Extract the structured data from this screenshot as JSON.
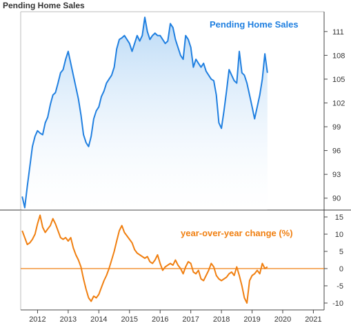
{
  "chart_data": [
    {
      "type": "area",
      "title": "Pending Home Sales",
      "series_label": "Pending Home Sales",
      "x": [
        2011.5,
        2011.583,
        2011.667,
        2011.75,
        2011.833,
        2011.917,
        2012.0,
        2012.083,
        2012.167,
        2012.25,
        2012.333,
        2012.417,
        2012.5,
        2012.583,
        2012.667,
        2012.75,
        2012.833,
        2012.917,
        2013.0,
        2013.083,
        2013.167,
        2013.25,
        2013.333,
        2013.417,
        2013.5,
        2013.583,
        2013.667,
        2013.75,
        2013.833,
        2013.917,
        2014.0,
        2014.083,
        2014.167,
        2014.25,
        2014.333,
        2014.417,
        2014.5,
        2014.583,
        2014.667,
        2014.75,
        2014.833,
        2014.917,
        2015.0,
        2015.083,
        2015.167,
        2015.25,
        2015.333,
        2015.417,
        2015.5,
        2015.583,
        2015.667,
        2015.75,
        2015.833,
        2015.917,
        2016.0,
        2016.083,
        2016.167,
        2016.25,
        2016.333,
        2016.417,
        2016.5,
        2016.583,
        2016.667,
        2016.75,
        2016.833,
        2016.917,
        2017.0,
        2017.083,
        2017.167,
        2017.25,
        2017.333,
        2017.417,
        2017.5,
        2017.583,
        2017.667,
        2017.75,
        2017.833,
        2017.917,
        2018.0,
        2018.083,
        2018.167,
        2018.25,
        2018.333,
        2018.417,
        2018.5,
        2018.583,
        2018.667,
        2018.75,
        2018.833,
        2018.917,
        2019.0,
        2019.083,
        2019.167,
        2019.25,
        2019.333,
        2019.417,
        2019.5
      ],
      "values": [
        90.2,
        88.8,
        91.5,
        94.0,
        96.5,
        97.8,
        98.5,
        98.2,
        98.0,
        99.5,
        100.2,
        101.8,
        103.0,
        103.3,
        104.5,
        105.8,
        106.2,
        107.5,
        108.5,
        107.0,
        105.5,
        104.0,
        102.5,
        100.5,
        98.0,
        97.0,
        96.5,
        97.8,
        100.0,
        101.0,
        101.5,
        102.8,
        103.5,
        104.5,
        105.0,
        105.5,
        106.5,
        108.8,
        110.0,
        110.2,
        110.5,
        110.0,
        109.5,
        108.5,
        109.5,
        110.5,
        109.8,
        110.5,
        112.8,
        111.0,
        110.0,
        110.5,
        110.8,
        110.5,
        110.5,
        110.0,
        109.5,
        109.8,
        112.0,
        111.5,
        110.0,
        109.0,
        108.0,
        107.5,
        110.5,
        110.0,
        109.0,
        106.5,
        107.5,
        107.0,
        106.5,
        107.0,
        106.0,
        105.5,
        105.0,
        104.8,
        103.0,
        99.5,
        98.8,
        101.0,
        103.5,
        106.2,
        105.5,
        104.8,
        104.5,
        108.5,
        105.8,
        105.5,
        104.5,
        103.0,
        101.5,
        100.0,
        101.5,
        103.0,
        105.0,
        108.2,
        105.8
      ],
      "y_ticks": [
        90,
        93,
        96,
        99,
        102,
        105,
        108,
        111
      ],
      "ylim": [
        88.5,
        113.5
      ],
      "line_color": "#1f7fe0",
      "label_color": "#1f7fe0"
    },
    {
      "type": "line",
      "title": "",
      "series_label": "year-over-year change (%)",
      "x": [
        2011.5,
        2011.583,
        2011.667,
        2011.75,
        2011.833,
        2011.917,
        2012.0,
        2012.083,
        2012.167,
        2012.25,
        2012.333,
        2012.417,
        2012.5,
        2012.583,
        2012.667,
        2012.75,
        2012.833,
        2012.917,
        2013.0,
        2013.083,
        2013.167,
        2013.25,
        2013.333,
        2013.417,
        2013.5,
        2013.583,
        2013.667,
        2013.75,
        2013.833,
        2013.917,
        2014.0,
        2014.083,
        2014.167,
        2014.25,
        2014.333,
        2014.417,
        2014.5,
        2014.583,
        2014.667,
        2014.75,
        2014.833,
        2014.917,
        2015.0,
        2015.083,
        2015.167,
        2015.25,
        2015.333,
        2015.417,
        2015.5,
        2015.583,
        2015.667,
        2015.75,
        2015.833,
        2015.917,
        2016.0,
        2016.083,
        2016.167,
        2016.25,
        2016.333,
        2016.417,
        2016.5,
        2016.583,
        2016.667,
        2016.75,
        2016.833,
        2016.917,
        2017.0,
        2017.083,
        2017.167,
        2017.25,
        2017.333,
        2017.417,
        2017.5,
        2017.583,
        2017.667,
        2017.75,
        2017.833,
        2017.917,
        2018.0,
        2018.083,
        2018.167,
        2018.25,
        2018.333,
        2018.417,
        2018.5,
        2018.583,
        2018.667,
        2018.75,
        2018.833,
        2018.917,
        2019.0,
        2019.083,
        2019.167,
        2019.25,
        2019.333,
        2019.417,
        2019.5
      ],
      "values": [
        11.0,
        9.0,
        7.0,
        7.5,
        8.5,
        10.0,
        13.0,
        15.5,
        12.0,
        10.5,
        11.5,
        12.5,
        14.5,
        13.0,
        11.0,
        9.0,
        8.5,
        9.0,
        8.0,
        9.0,
        6.0,
        4.0,
        2.5,
        0.5,
        -3.0,
        -6.0,
        -8.5,
        -9.5,
        -8.0,
        -8.5,
        -7.5,
        -5.5,
        -3.5,
        -2.0,
        0.0,
        2.5,
        5.0,
        8.0,
        11.0,
        12.5,
        10.5,
        9.5,
        8.5,
        7.5,
        5.5,
        4.5,
        4.0,
        3.5,
        3.0,
        3.5,
        2.0,
        1.5,
        2.5,
        4.0,
        1.5,
        -0.5,
        0.5,
        1.0,
        1.5,
        1.0,
        2.5,
        1.0,
        0.0,
        -1.5,
        0.5,
        2.0,
        1.5,
        -1.0,
        -1.5,
        -0.5,
        -3.0,
        -3.5,
        -2.0,
        -0.5,
        1.5,
        0.5,
        -2.0,
        -3.0,
        -3.5,
        -3.0,
        -2.5,
        -1.5,
        -1.0,
        -2.0,
        0.5,
        -2.0,
        -5.0,
        -8.5,
        -10.0,
        -3.5,
        -2.0,
        -1.5,
        -0.5,
        -1.5,
        1.5,
        0.0,
        0.5
      ],
      "zero_line": 0,
      "y_ticks": [
        -10,
        -5,
        0,
        5,
        10,
        15
      ],
      "ylim": [
        -12,
        17
      ],
      "line_color": "#f07f10",
      "label_color": "#f07f10"
    }
  ],
  "x_axis": {
    "tick_labels": [
      "2012",
      "2013",
      "2014",
      "2015",
      "2016",
      "2017",
      "2018",
      "2019",
      "2020",
      "2021"
    ],
    "tick_values": [
      2012,
      2013,
      2014,
      2015,
      2016,
      2017,
      2018,
      2019,
      2020,
      2021
    ],
    "xlim": [
      2011.45,
      2021.35
    ]
  },
  "grid": false,
  "colors": {
    "axis": "#444444",
    "divider": "#333333",
    "fill_top": "#b9d9f6",
    "fill_bottom": "#ffffff"
  }
}
